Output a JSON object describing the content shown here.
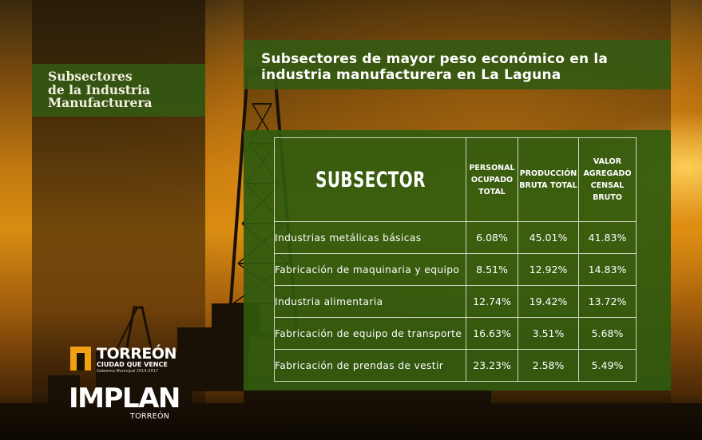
{
  "sidebar": {
    "title_lines": [
      "Subsectores",
      "de la Industria",
      "Manufacturera"
    ]
  },
  "header": {
    "title_lines": [
      "Subsectores de mayor peso económico en la",
      "industria manufacturera en La Laguna"
    ]
  },
  "table": {
    "headers": {
      "subsector": "SUBSECTOR",
      "col1": [
        "PERSONAL",
        "OCUPADO",
        "TOTAL"
      ],
      "col2": [
        "PRODUCCIÓN",
        "BRUTA TOTAL"
      ],
      "col3": [
        "VALOR",
        "AGREGADO",
        "CENSAL BRUTO"
      ]
    },
    "rows": [
      {
        "name": "Industrias metálicas básicas",
        "personal": "6.08%",
        "produccion": "45.01%",
        "valor": "41.83%"
      },
      {
        "name": "Fabricación de maquinaria y equipo",
        "personal": "8.51%",
        "produccion": "12.92%",
        "valor": "14.83%"
      },
      {
        "name": "Industria alimentaria",
        "personal": "12.74%",
        "produccion": "19.42%",
        "valor": "13.72%"
      },
      {
        "name": "Fabricación de equipo de transporte",
        "personal": "16.63%",
        "produccion": "3.51%",
        "valor": "5.68%"
      },
      {
        "name": "Fabricación de prendas de vestir",
        "personal": "23.23%",
        "produccion": "2.58%",
        "valor": "5.49%"
      }
    ]
  },
  "logos": {
    "torreon_name": "TORREÓN",
    "torreon_tagline": "CIUDAD QUE VENCE",
    "torreon_sub": "Gobierno Municipal 2014-2017",
    "implan": "IMPLAN",
    "implan_sub": "TORREÓN"
  },
  "colors": {
    "panel_green": "#345a12",
    "sky_orange": "#d88c12",
    "logo_orange": "#f0a010"
  }
}
